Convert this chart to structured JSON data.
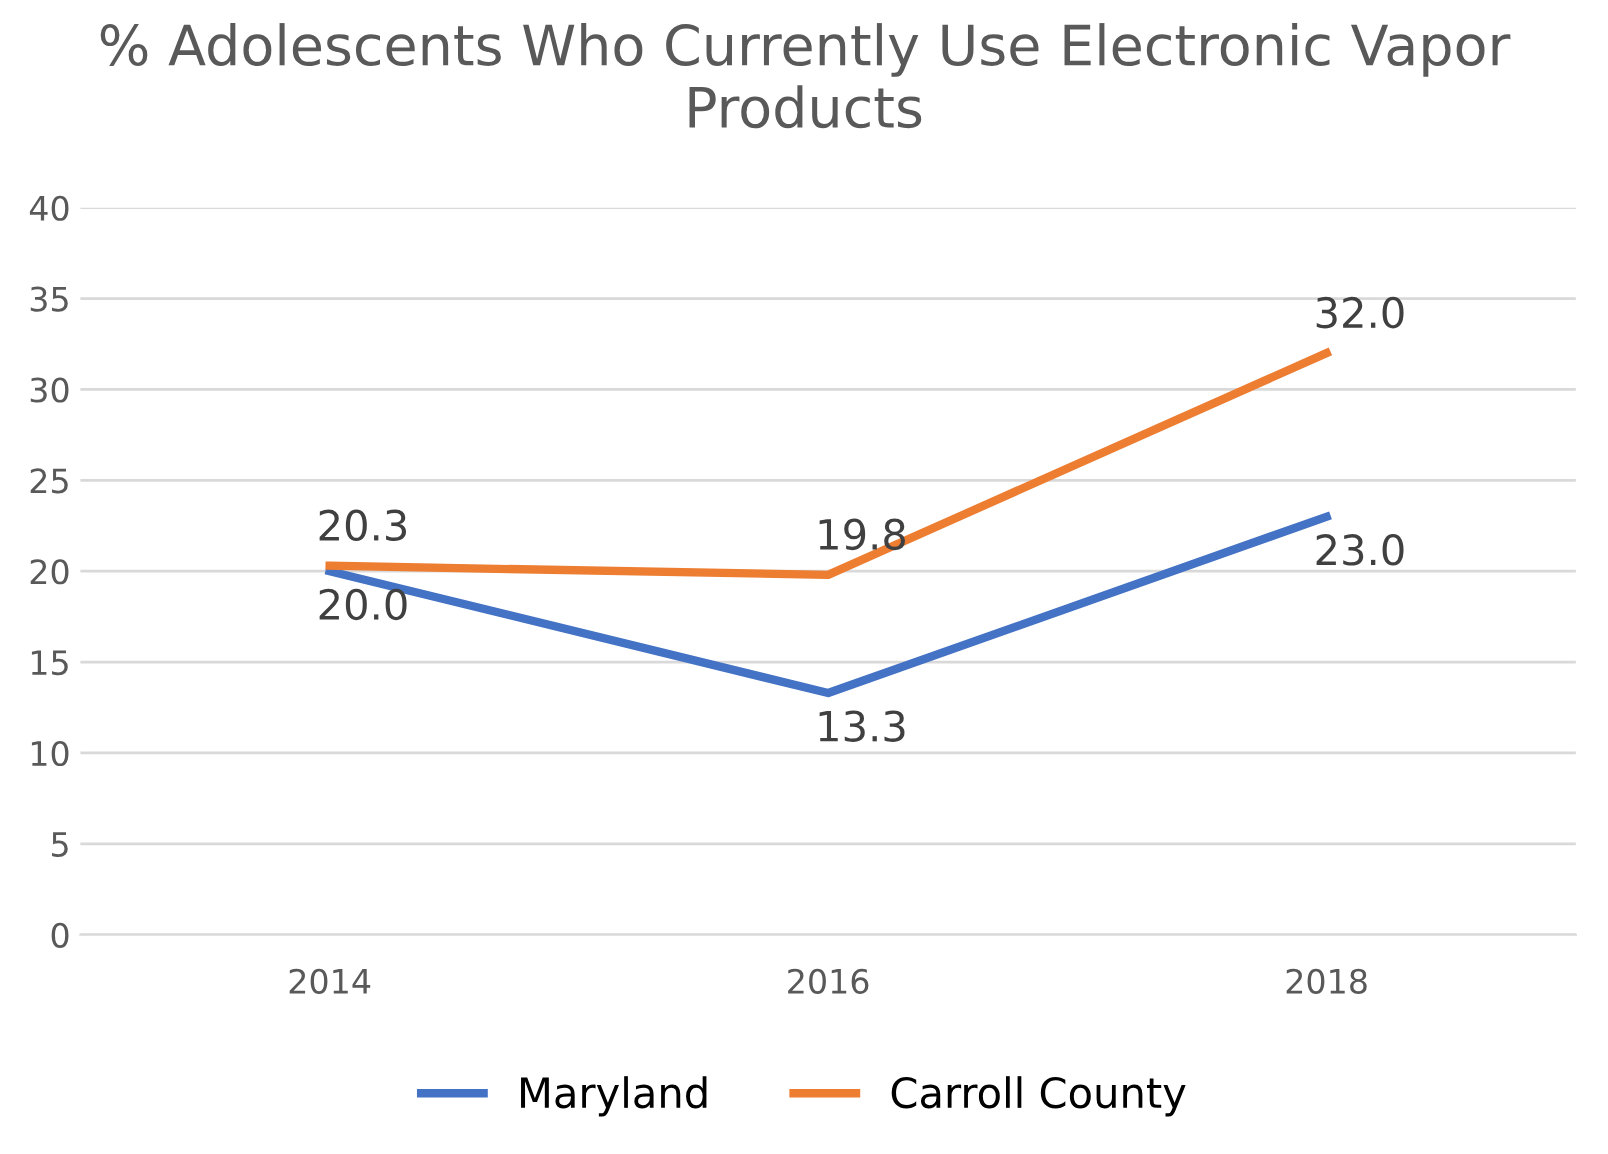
{
  "chart_data": {
    "type": "line",
    "title": "% Adolescents Who Currently Use Electronic Vapor Products",
    "categories": [
      "2014",
      "2016",
      "2018"
    ],
    "series": [
      {
        "name": "Maryland",
        "color": "#4472c4",
        "values": [
          20.0,
          13.3,
          23.0
        ],
        "value_labels": [
          "20.0",
          "13.3",
          "23.0"
        ]
      },
      {
        "name": "Carroll County",
        "color": "#ed7d31",
        "values": [
          20.3,
          19.8,
          32.0
        ],
        "value_labels": [
          "20.3",
          "19.8",
          "32.0"
        ]
      }
    ],
    "ylim": [
      0,
      40
    ],
    "yticks": [
      0,
      5,
      10,
      15,
      20,
      25,
      30,
      35,
      40
    ],
    "grid": "y",
    "legend": "bottom",
    "marker": "none",
    "line_style": "solid"
  }
}
